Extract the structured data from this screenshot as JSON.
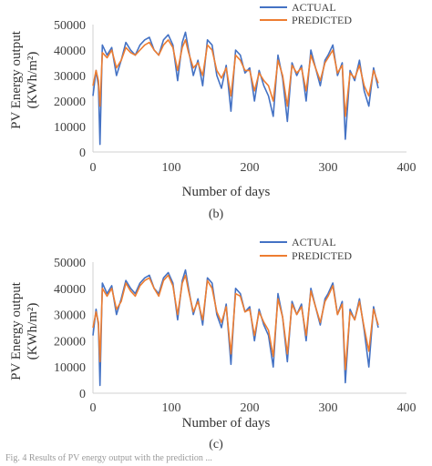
{
  "chart_data": [
    {
      "type": "line",
      "panel_label": "(b)",
      "xlabel": "Number of days",
      "ylabel_lines": [
        "PV Energy output",
        "(KWh/m²)"
      ],
      "xlim": [
        0,
        400
      ],
      "ylim": [
        0,
        50000
      ],
      "xticks": [
        "0",
        "100",
        "200",
        "300",
        "400"
      ],
      "yticks": [
        "0",
        "10000",
        "20000",
        "30000",
        "40000",
        "50000"
      ],
      "legend_position": "top-right",
      "grid": false,
      "series": [
        {
          "name": "ACTUAL",
          "color": "#4472C4"
        },
        {
          "name": "PREDICTED",
          "color": "#ED7D31"
        }
      ],
      "x": [
        0,
        4,
        7,
        9,
        12,
        18,
        24,
        30,
        36,
        42,
        48,
        54,
        60,
        66,
        72,
        78,
        84,
        90,
        96,
        102,
        108,
        114,
        118,
        122,
        128,
        134,
        140,
        146,
        152,
        158,
        164,
        170,
        176,
        182,
        188,
        194,
        200,
        206,
        212,
        218,
        224,
        230,
        236,
        242,
        248,
        254,
        260,
        266,
        272,
        278,
        284,
        290,
        296,
        300,
        306,
        312,
        318,
        322,
        328,
        334,
        340,
        346,
        352,
        358,
        364
      ],
      "series_values": [
        [
          22000,
          32000,
          26000,
          3000,
          42000,
          38000,
          41000,
          30000,
          36000,
          43000,
          40000,
          38000,
          42000,
          44000,
          45000,
          40000,
          38000,
          44000,
          46000,
          42000,
          28000,
          43000,
          47000,
          40000,
          30000,
          36000,
          26000,
          44000,
          42000,
          30000,
          25000,
          34000,
          16000,
          40000,
          38000,
          31000,
          33000,
          20000,
          32000,
          26000,
          22000,
          14000,
          38000,
          29000,
          12000,
          35000,
          30000,
          34000,
          20000,
          40000,
          33000,
          26000,
          36000,
          38000,
          42000,
          30000,
          35000,
          5000,
          32000,
          28000,
          36000,
          24000,
          18000,
          33000,
          25000
        ],
        [
          26000,
          32000,
          28000,
          18000,
          39000,
          37000,
          40000,
          33000,
          36000,
          41000,
          39000,
          38000,
          40000,
          42000,
          43000,
          40000,
          38000,
          42000,
          44000,
          41000,
          32000,
          41000,
          44000,
          39000,
          33000,
          35000,
          30000,
          42000,
          40000,
          32000,
          29000,
          33000,
          22000,
          38000,
          36000,
          32000,
          32000,
          24000,
          31000,
          28000,
          26000,
          20000,
          36000,
          30000,
          18000,
          34000,
          31000,
          33000,
          24000,
          38000,
          33000,
          28000,
          35000,
          37000,
          40000,
          31000,
          34000,
          14000,
          31000,
          29000,
          34000,
          26000,
          22000,
          32000,
          27000
        ]
      ]
    },
    {
      "type": "line",
      "panel_label": "(c)",
      "xlabel": "Number of days",
      "ylabel_lines": [
        "PV Energy output",
        "(KWh/m²)"
      ],
      "xlim": [
        0,
        400
      ],
      "ylim": [
        0,
        50000
      ],
      "xticks": [
        "0",
        "100",
        "200",
        "300",
        "400"
      ],
      "yticks": [
        "0",
        "10000",
        "20000",
        "30000",
        "40000",
        "50000"
      ],
      "legend_position": "top-right",
      "grid": false,
      "series": [
        {
          "name": "ACTUAL",
          "color": "#4472C4"
        },
        {
          "name": "PREDICTED",
          "color": "#ED7D31"
        }
      ],
      "x": [
        0,
        4,
        7,
        9,
        12,
        18,
        24,
        30,
        36,
        42,
        48,
        54,
        60,
        66,
        72,
        78,
        84,
        90,
        96,
        102,
        108,
        114,
        118,
        122,
        128,
        134,
        140,
        146,
        152,
        158,
        164,
        170,
        176,
        182,
        188,
        194,
        200,
        206,
        212,
        218,
        224,
        230,
        236,
        242,
        248,
        254,
        260,
        266,
        272,
        278,
        284,
        290,
        296,
        300,
        306,
        312,
        318,
        322,
        328,
        334,
        340,
        346,
        352,
        358,
        364
      ],
      "series_values": [
        [
          22000,
          32000,
          26000,
          3000,
          42000,
          38000,
          41000,
          30000,
          36000,
          43000,
          40000,
          38000,
          42000,
          44000,
          45000,
          40000,
          38000,
          44000,
          46000,
          42000,
          28000,
          43000,
          47000,
          40000,
          30000,
          36000,
          26000,
          44000,
          42000,
          30000,
          25000,
          34000,
          11000,
          40000,
          38000,
          31000,
          33000,
          20000,
          32000,
          26000,
          22000,
          10000,
          38000,
          29000,
          12000,
          35000,
          30000,
          34000,
          20000,
          40000,
          33000,
          26000,
          36000,
          38000,
          42000,
          30000,
          35000,
          4000,
          32000,
          28000,
          36000,
          24000,
          10000,
          33000,
          25000
        ],
        [
          25000,
          31000,
          27000,
          12000,
          40000,
          37000,
          40000,
          32000,
          35000,
          42000,
          39000,
          37000,
          41000,
          43000,
          44000,
          40000,
          37000,
          43000,
          45000,
          41000,
          30000,
          42000,
          45000,
          39000,
          31000,
          35000,
          28000,
          43000,
          40000,
          31000,
          27000,
          33000,
          15000,
          38000,
          37000,
          31000,
          32000,
          22000,
          31000,
          27000,
          24000,
          14000,
          36000,
          29000,
          15000,
          34000,
          30000,
          33000,
          22000,
          39000,
          33000,
          27000,
          35000,
          37000,
          41000,
          30000,
          34000,
          9000,
          31000,
          28000,
          35000,
          25000,
          16000,
          32000,
          26000
        ]
      ]
    }
  ],
  "footer_text": "Fig. 4  Results of PV energy output with the prediction ..."
}
